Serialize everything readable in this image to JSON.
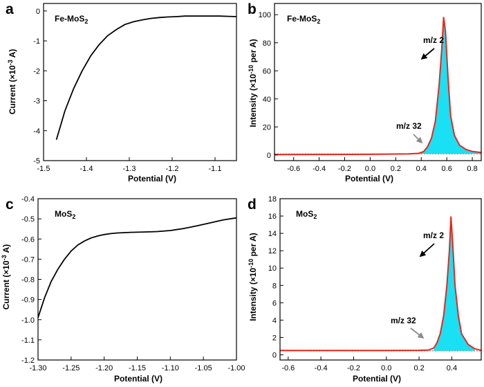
{
  "colors": {
    "axis": "#000000",
    "iv_curve": "#000000",
    "ms_curve": "#e8251c",
    "fill": "#19e0f2",
    "baseline_dots": "#9b9b9b",
    "arrow_mz32": "#8a8a8a"
  },
  "chart_data": [
    {
      "panel": "a",
      "type": "line",
      "title": "Fe-MoS2",
      "xlabel": "Potential (V)",
      "ylabel": "Current (×10⁻³ A)",
      "xlim": [
        -1.5,
        -1.05
      ],
      "ylim": [
        -5,
        0.25
      ],
      "xticks": [
        -1.5,
        -1.4,
        -1.3,
        -1.2,
        -1.1
      ],
      "yticks": [
        -5,
        -4,
        -3,
        -2,
        -1,
        0
      ],
      "xtick_labels": [
        "-1.5",
        "-1.4",
        "-1.3",
        "-1.2",
        "-1.1"
      ],
      "ytick_labels": [
        "-5",
        "-4",
        "-3",
        "-2",
        "-1",
        "0"
      ],
      "series": [
        {
          "name": "current",
          "x": [
            -1.47,
            -1.45,
            -1.43,
            -1.41,
            -1.39,
            -1.37,
            -1.35,
            -1.33,
            -1.31,
            -1.29,
            -1.27,
            -1.25,
            -1.23,
            -1.21,
            -1.19,
            -1.17,
            -1.15,
            -1.13,
            -1.11,
            -1.09,
            -1.07,
            -1.05
          ],
          "y": [
            -4.3,
            -3.33,
            -2.6,
            -2.0,
            -1.5,
            -1.12,
            -0.82,
            -0.62,
            -0.45,
            -0.36,
            -0.3,
            -0.25,
            -0.22,
            -0.2,
            -0.19,
            -0.17,
            -0.17,
            -0.17,
            -0.17,
            -0.17,
            -0.18,
            -0.19
          ]
        }
      ]
    },
    {
      "panel": "b",
      "type": "area",
      "title": "Fe-MoS2",
      "xlabel": "Potential (V)",
      "ylabel": "Intensity (×10⁻¹⁰ per A)",
      "xlim": [
        -0.75,
        0.87
      ],
      "ylim": [
        -4,
        108
      ],
      "xticks": [
        -0.6,
        -0.4,
        -0.2,
        0.0,
        0.2,
        0.4,
        0.6,
        0.8
      ],
      "yticks": [
        0,
        20,
        40,
        60,
        80,
        100
      ],
      "xtick_labels": [
        "-0.6",
        "-0.4",
        "-0.2",
        "0.0",
        "0.2",
        "0.4",
        "0.6",
        "0.8"
      ],
      "ytick_labels": [
        "0",
        "20",
        "40",
        "60",
        "80",
        "100"
      ],
      "series": [
        {
          "name": "m/z 2",
          "x": [
            -0.75,
            -0.4,
            0.0,
            0.3,
            0.38,
            0.42,
            0.45,
            0.48,
            0.51,
            0.54,
            0.56,
            0.575,
            0.59,
            0.61,
            0.63,
            0.66,
            0.7,
            0.75,
            0.8,
            0.87
          ],
          "y": [
            0.3,
            0.4,
            0.5,
            0.8,
            1.2,
            2.5,
            6,
            12,
            24,
            50,
            75,
            98,
            88,
            55,
            28,
            14,
            7,
            4,
            2.5,
            1.8
          ]
        },
        {
          "name": "m/z 32",
          "x": [
            -0.75,
            0.87
          ],
          "y": [
            0.8,
            0.8
          ]
        }
      ],
      "annotations": [
        {
          "text": "m/z 2",
          "x": 0.48,
          "y": 75
        },
        {
          "text": "m/z 32",
          "x": 0.2,
          "y": 13
        }
      ]
    },
    {
      "panel": "c",
      "type": "line",
      "title": "MoS2",
      "xlabel": "Potential (V)",
      "ylabel": "Current (×10⁻³ A)",
      "xlim": [
        -1.3,
        -1.0
      ],
      "ylim": [
        -1.2,
        -0.4
      ],
      "xticks": [
        -1.3,
        -1.25,
        -1.2,
        -1.15,
        -1.1,
        -1.05,
        -1.0
      ],
      "yticks": [
        -1.2,
        -1.1,
        -1.0,
        -0.9,
        -0.8,
        -0.7,
        -0.6,
        -0.5,
        -0.4
      ],
      "xtick_labels": [
        "-1.30",
        "-1.25",
        "-1.20",
        "-1.15",
        "-1.10",
        "-1.05",
        "-1.00"
      ],
      "ytick_labels": [
        "-1.2",
        "-1.1",
        "-1.0",
        "-0.9",
        "-0.8",
        "-0.7",
        "-0.6",
        "-0.5",
        "-0.4"
      ],
      "series": [
        {
          "name": "current",
          "x": [
            -1.3,
            -1.29,
            -1.28,
            -1.27,
            -1.26,
            -1.25,
            -1.24,
            -1.23,
            -1.22,
            -1.21,
            -1.2,
            -1.19,
            -1.18,
            -1.16,
            -1.14,
            -1.12,
            -1.1,
            -1.08,
            -1.06,
            -1.04,
            -1.02,
            -1.0
          ],
          "y": [
            -0.99,
            -0.89,
            -0.81,
            -0.75,
            -0.7,
            -0.66,
            -0.63,
            -0.61,
            -0.595,
            -0.585,
            -0.578,
            -0.573,
            -0.57,
            -0.567,
            -0.565,
            -0.563,
            -0.558,
            -0.548,
            -0.535,
            -0.52,
            -0.505,
            -0.495
          ]
        }
      ]
    },
    {
      "panel": "d",
      "type": "area",
      "title": "MoS2",
      "xlabel": "Potential (V)",
      "ylabel": "Intensity (×10⁻¹⁰ per A)",
      "xlim": [
        -0.65,
        0.58
      ],
      "ylim": [
        -0.6,
        18
      ],
      "xticks": [
        -0.6,
        -0.4,
        -0.2,
        0.0,
        0.2,
        0.4
      ],
      "yticks": [
        0,
        2,
        4,
        6,
        8,
        10,
        12,
        14,
        16,
        18
      ],
      "xtick_labels": [
        "-0.6",
        "-0.4",
        "-0.2",
        "0.0",
        "0.2",
        "0.4"
      ],
      "ytick_labels": [
        "0",
        "2",
        "4",
        "6",
        "8",
        "10",
        "12",
        "14",
        "16",
        "18"
      ],
      "series": [
        {
          "name": "m/z 2",
          "x": [
            -0.65,
            -0.3,
            0.0,
            0.2,
            0.26,
            0.29,
            0.31,
            0.33,
            0.35,
            0.37,
            0.385,
            0.395,
            0.405,
            0.42,
            0.44,
            0.46,
            0.5,
            0.54,
            0.58
          ],
          "y": [
            0.5,
            0.5,
            0.5,
            0.52,
            0.55,
            0.8,
            1.4,
            2.5,
            4.5,
            8,
            12,
            15.9,
            13,
            8,
            4.5,
            2.4,
            1.2,
            0.7,
            0.5
          ]
        },
        {
          "name": "m/z 32",
          "x": [
            -0.65,
            0.58
          ],
          "y": [
            0.45,
            0.45
          ]
        }
      ],
      "annotations": [
        {
          "text": "m/z 2",
          "x": 0.34,
          "y": 13.5
        },
        {
          "text": "m/z 32",
          "x": 0.14,
          "y": 2.1
        }
      ]
    }
  ]
}
